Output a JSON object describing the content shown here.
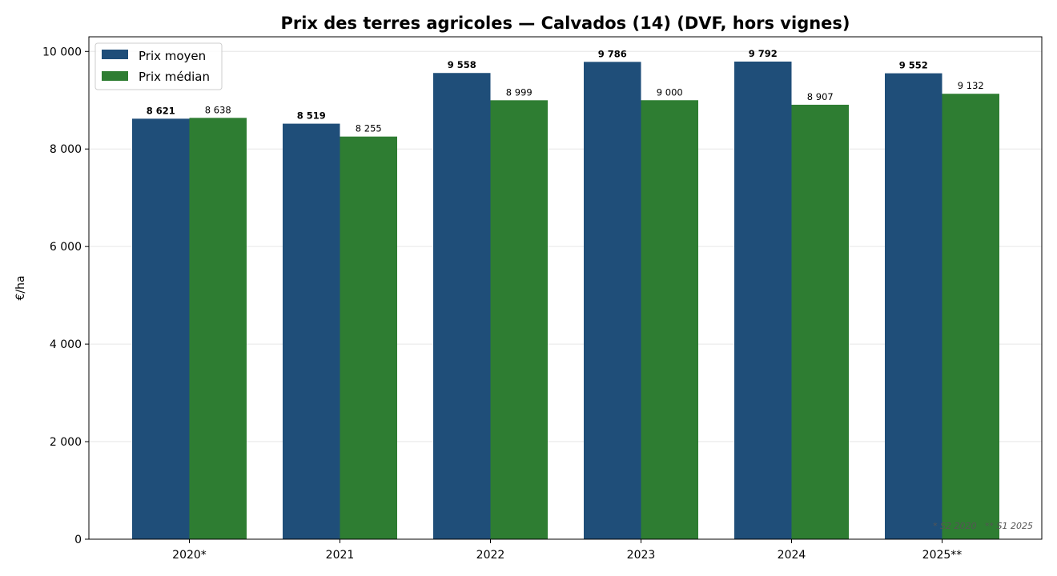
{
  "chart_data": {
    "type": "bar",
    "title": "Prix des terres agricoles — Calvados (14) (DVF, hors vignes)",
    "xlabel": "",
    "ylabel": "€/ha",
    "categories": [
      "2020*",
      "2021",
      "2022",
      "2023",
      "2024",
      "2025**"
    ],
    "series": [
      {
        "name": "Prix moyen",
        "color": "#1f4e79",
        "values": [
          8621,
          8519,
          9558,
          9786,
          9792,
          9552
        ],
        "labels": [
          "8 621",
          "8 519",
          "9 558",
          "9 786",
          "9 792",
          "9 552"
        ]
      },
      {
        "name": "Prix médian",
        "color": "#2e7d32",
        "values": [
          8638,
          8255,
          8999,
          9000,
          8907,
          9132
        ],
        "labels": [
          "8 638",
          "8 255",
          "8 999",
          "9 000",
          "8 907",
          "9 132"
        ]
      }
    ],
    "ylim": [
      0,
      10300
    ],
    "yticks": [
      0,
      2000,
      4000,
      6000,
      8000,
      10000
    ],
    "ytick_labels": [
      "0",
      "2 000",
      "4 000",
      "6 000",
      "8 000",
      "10 000"
    ],
    "grid": true,
    "legend_position": "top-left",
    "footnote": "* S2 2020   ** S1 2025"
  }
}
